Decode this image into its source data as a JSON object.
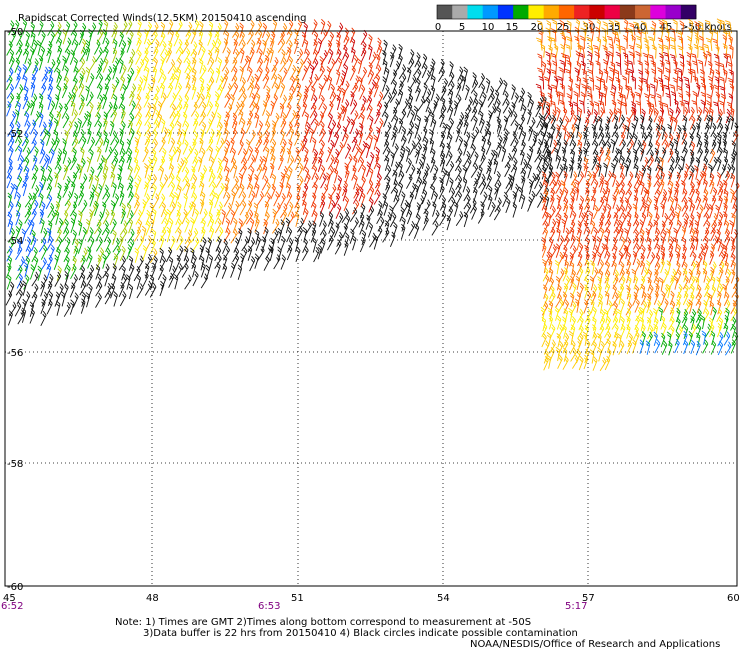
{
  "title": "Rapidscat Corrected Winds(12.5KM) 20150410 ascending",
  "legend": {
    "unit_label": ">50 knots",
    "tick_labels": [
      "0",
      "5",
      "10",
      "15",
      "20",
      "25",
      "30",
      "35",
      "40",
      "45"
    ],
    "colors": [
      "#555555",
      "#aaaaaa",
      "#00ddee",
      "#0099ff",
      "#0033ff",
      "#00aa00",
      "#ffee00",
      "#ffaa00",
      "#ff6600",
      "#ee2222",
      "#cc0000",
      "#ee0044",
      "#8b3a1a",
      "#cc6633",
      "#dd00dd",
      "#9900cc",
      "#330066"
    ]
  },
  "axes": {
    "lat_labels": [
      "-50",
      "-52",
      "-54",
      "-56",
      "-58",
      "-60"
    ],
    "lon_labels": [
      "45",
      "48",
      "51",
      "54",
      "57",
      "60"
    ],
    "time_labels": [
      "6:52",
      "6:53",
      "5:17"
    ]
  },
  "notes": {
    "line1": "Note: 1) Times are GMT 2)Times along bottom correspond to measurement at -50S",
    "line2": "3)Data buffer is 22 hrs from 20150410 4) Black circles indicate possible contamination",
    "credit": "NOAA/NESDIS/Office of Research and Applications"
  }
}
